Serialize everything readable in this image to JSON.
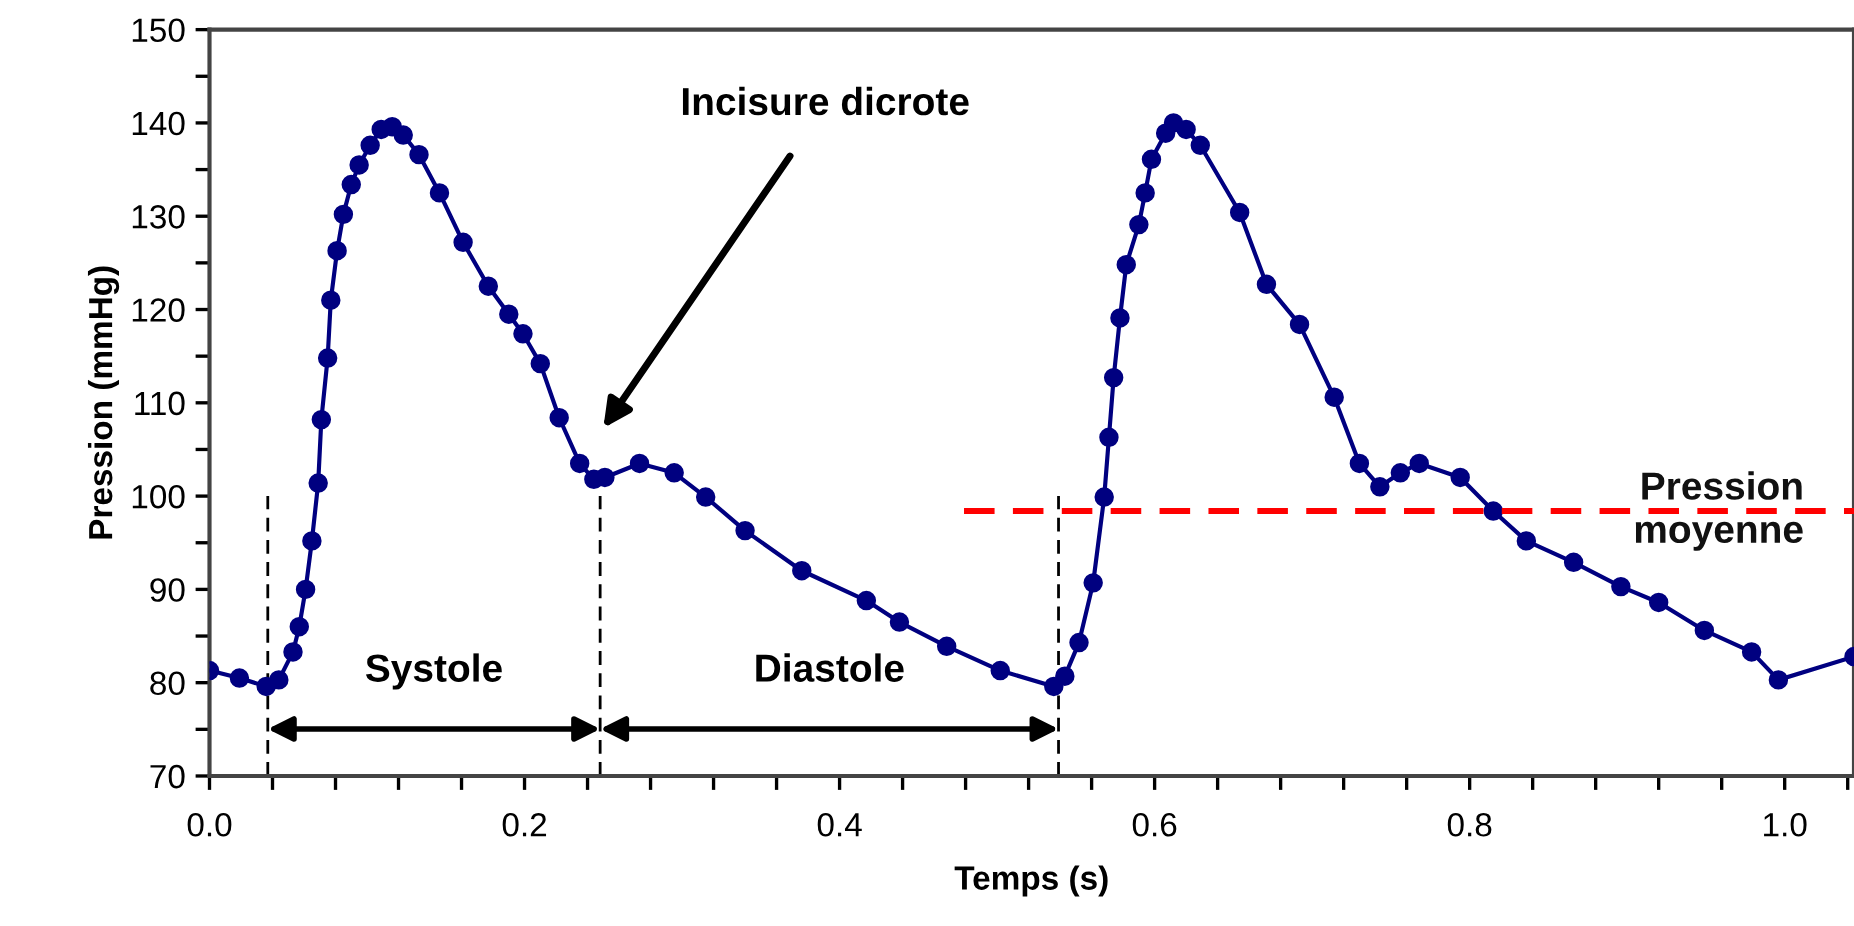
{
  "chart_data": {
    "type": "line",
    "xlabel": "Temps (s)",
    "ylabel": "Pression (mmHg)",
    "xlim": [
      0,
      1.044
    ],
    "ylim": [
      70,
      150
    ],
    "xticks": [
      {
        "value": 0,
        "label": "0.0"
      },
      {
        "value": 0.04,
        "label": null
      },
      {
        "value": 0.08,
        "label": null
      },
      {
        "value": 0.12,
        "label": null
      },
      {
        "value": 0.16,
        "label": null
      },
      {
        "value": 0.2,
        "label": "0.2"
      },
      {
        "value": 0.24,
        "label": null
      },
      {
        "value": 0.28,
        "label": null
      },
      {
        "value": 0.32,
        "label": null
      },
      {
        "value": 0.36,
        "label": null
      },
      {
        "value": 0.4,
        "label": "0.4"
      },
      {
        "value": 0.44,
        "label": null
      },
      {
        "value": 0.48,
        "label": null
      },
      {
        "value": 0.52,
        "label": null
      },
      {
        "value": 0.56,
        "label": null
      },
      {
        "value": 0.6,
        "label": "0.6"
      },
      {
        "value": 0.64,
        "label": null
      },
      {
        "value": 0.68,
        "label": null
      },
      {
        "value": 0.72,
        "label": null
      },
      {
        "value": 0.76,
        "label": null
      },
      {
        "value": 0.8,
        "label": "0.8"
      },
      {
        "value": 0.84,
        "label": null
      },
      {
        "value": 0.88,
        "label": null
      },
      {
        "value": 0.92,
        "label": null
      },
      {
        "value": 0.96,
        "label": null
      },
      {
        "value": 1.0,
        "label": "1.0"
      },
      {
        "value": 1.04,
        "label": null
      }
    ],
    "yticks": [
      70,
      {
        "value": 75,
        "label": null
      },
      80,
      {
        "value": 85,
        "label": null
      },
      90,
      {
        "value": 95,
        "label": null
      },
      100,
      {
        "value": 105,
        "label": null
      },
      110,
      {
        "value": 115,
        "label": null
      },
      120,
      {
        "value": 125,
        "label": null
      },
      130,
      {
        "value": 135,
        "label": null
      },
      140,
      {
        "value": 145,
        "label": null
      },
      150
    ],
    "grid": false,
    "legend": false,
    "series": [
      {
        "color": "#000080",
        "marker": "circle",
        "line_style": "solid",
        "x": [
          0,
          0.019,
          0.036,
          0.044,
          0.053,
          0.057,
          0.061,
          0.065,
          0.069,
          0.071,
          0.075,
          0.077,
          0.081,
          0.085,
          0.09,
          0.095,
          0.102,
          0.109,
          0.116,
          0.123,
          0.133,
          0.146,
          0.161,
          0.177,
          0.19,
          0.199,
          0.21,
          0.222,
          0.235,
          0.244,
          0.251,
          0.273,
          0.295,
          0.315,
          0.34,
          0.376,
          0.417,
          0.438,
          0.468,
          0.502,
          0.536,
          0.543,
          0.552,
          0.561,
          0.568,
          0.571,
          0.574,
          0.578,
          0.582,
          0.59,
          0.594,
          0.598,
          0.607,
          0.612,
          0.62,
          0.629,
          0.654,
          0.671,
          0.692,
          0.714,
          0.73,
          0.743,
          0.756,
          0.768,
          0.794,
          0.815,
          0.836,
          0.866,
          0.896,
          0.92,
          0.949,
          0.979,
          0.996,
          1.044
        ],
        "values": [
          81.3,
          80.5,
          79.6,
          80.3,
          83.3,
          86,
          90,
          95.2,
          101.4,
          108.2,
          114.8,
          121,
          126.3,
          130.2,
          133.4,
          135.5,
          137.6,
          139.3,
          139.6,
          138.7,
          136.6,
          132.5,
          127.2,
          122.5,
          119.5,
          117.4,
          114.2,
          108.4,
          103.5,
          101.8,
          102,
          103.5,
          102.5,
          99.9,
          96.3,
          92,
          88.8,
          86.5,
          83.9,
          81.3,
          79.6,
          80.7,
          84.3,
          90.7,
          99.9,
          106.3,
          112.7,
          119.1,
          124.8,
          129.1,
          132.5,
          136.1,
          138.9,
          140,
          139.3,
          137.6,
          130.4,
          122.7,
          118.4,
          110.6,
          103.5,
          101,
          102.5,
          103.5,
          102,
          98.4,
          95.2,
          92.9,
          90.3,
          88.6,
          85.6,
          83.3,
          80.3,
          82.8
        ]
      },
      {
        "name": "Pression moyenne",
        "color": "#ff0000",
        "marker": "none",
        "line_style": "dashed",
        "x": [
          0.479,
          1.044
        ],
        "values": [
          98.4,
          98.4
        ]
      }
    ],
    "ref_lines": [
      {
        "axis": "x",
        "value": 0.037,
        "color": "#000000",
        "line_style": "dashed"
      },
      {
        "axis": "x",
        "value": 0.248,
        "color": "#000000",
        "line_style": "dashed"
      },
      {
        "axis": "x",
        "value": 0.539,
        "color": "#000000",
        "line_style": "dashed"
      }
    ],
    "annotations": [
      "Systole",
      "Diastole",
      "Incisure dicrote"
    ]
  }
}
